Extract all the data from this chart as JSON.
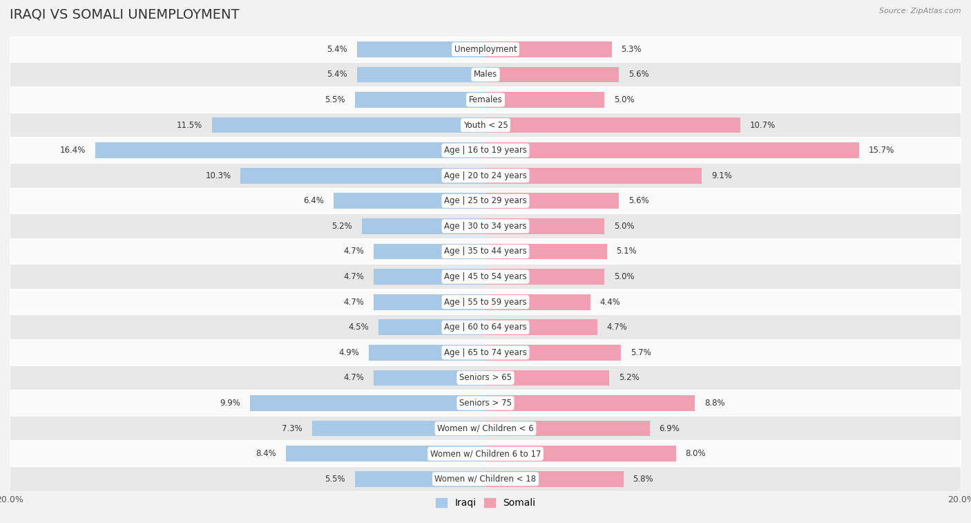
{
  "title": "IRAQI VS SOMALI UNEMPLOYMENT",
  "source": "Source: ZipAtlas.com",
  "categories": [
    "Unemployment",
    "Males",
    "Females",
    "Youth < 25",
    "Age | 16 to 19 years",
    "Age | 20 to 24 years",
    "Age | 25 to 29 years",
    "Age | 30 to 34 years",
    "Age | 35 to 44 years",
    "Age | 45 to 54 years",
    "Age | 55 to 59 years",
    "Age | 60 to 64 years",
    "Age | 65 to 74 years",
    "Seniors > 65",
    "Seniors > 75",
    "Women w/ Children < 6",
    "Women w/ Children 6 to 17",
    "Women w/ Children < 18"
  ],
  "iraqi": [
    5.4,
    5.4,
    5.5,
    11.5,
    16.4,
    10.3,
    6.4,
    5.2,
    4.7,
    4.7,
    4.7,
    4.5,
    4.9,
    4.7,
    9.9,
    7.3,
    8.4,
    5.5
  ],
  "somali": [
    5.3,
    5.6,
    5.0,
    10.7,
    15.7,
    9.1,
    5.6,
    5.0,
    5.1,
    5.0,
    4.4,
    4.7,
    5.7,
    5.2,
    8.8,
    6.9,
    8.0,
    5.8
  ],
  "iraqi_color": "#a8c8e8",
  "somali_color": "#f0a0b0",
  "bar_height": 0.62,
  "xlim": 20.0,
  "bg_color": "#f2f2f2",
  "row_color_light": "#fafafa",
  "row_color_dark": "#e8e8e8",
  "title_fontsize": 14,
  "label_fontsize": 8.5,
  "value_fontsize": 8.5,
  "legend_fontsize": 10,
  "axis_label_fontsize": 9
}
